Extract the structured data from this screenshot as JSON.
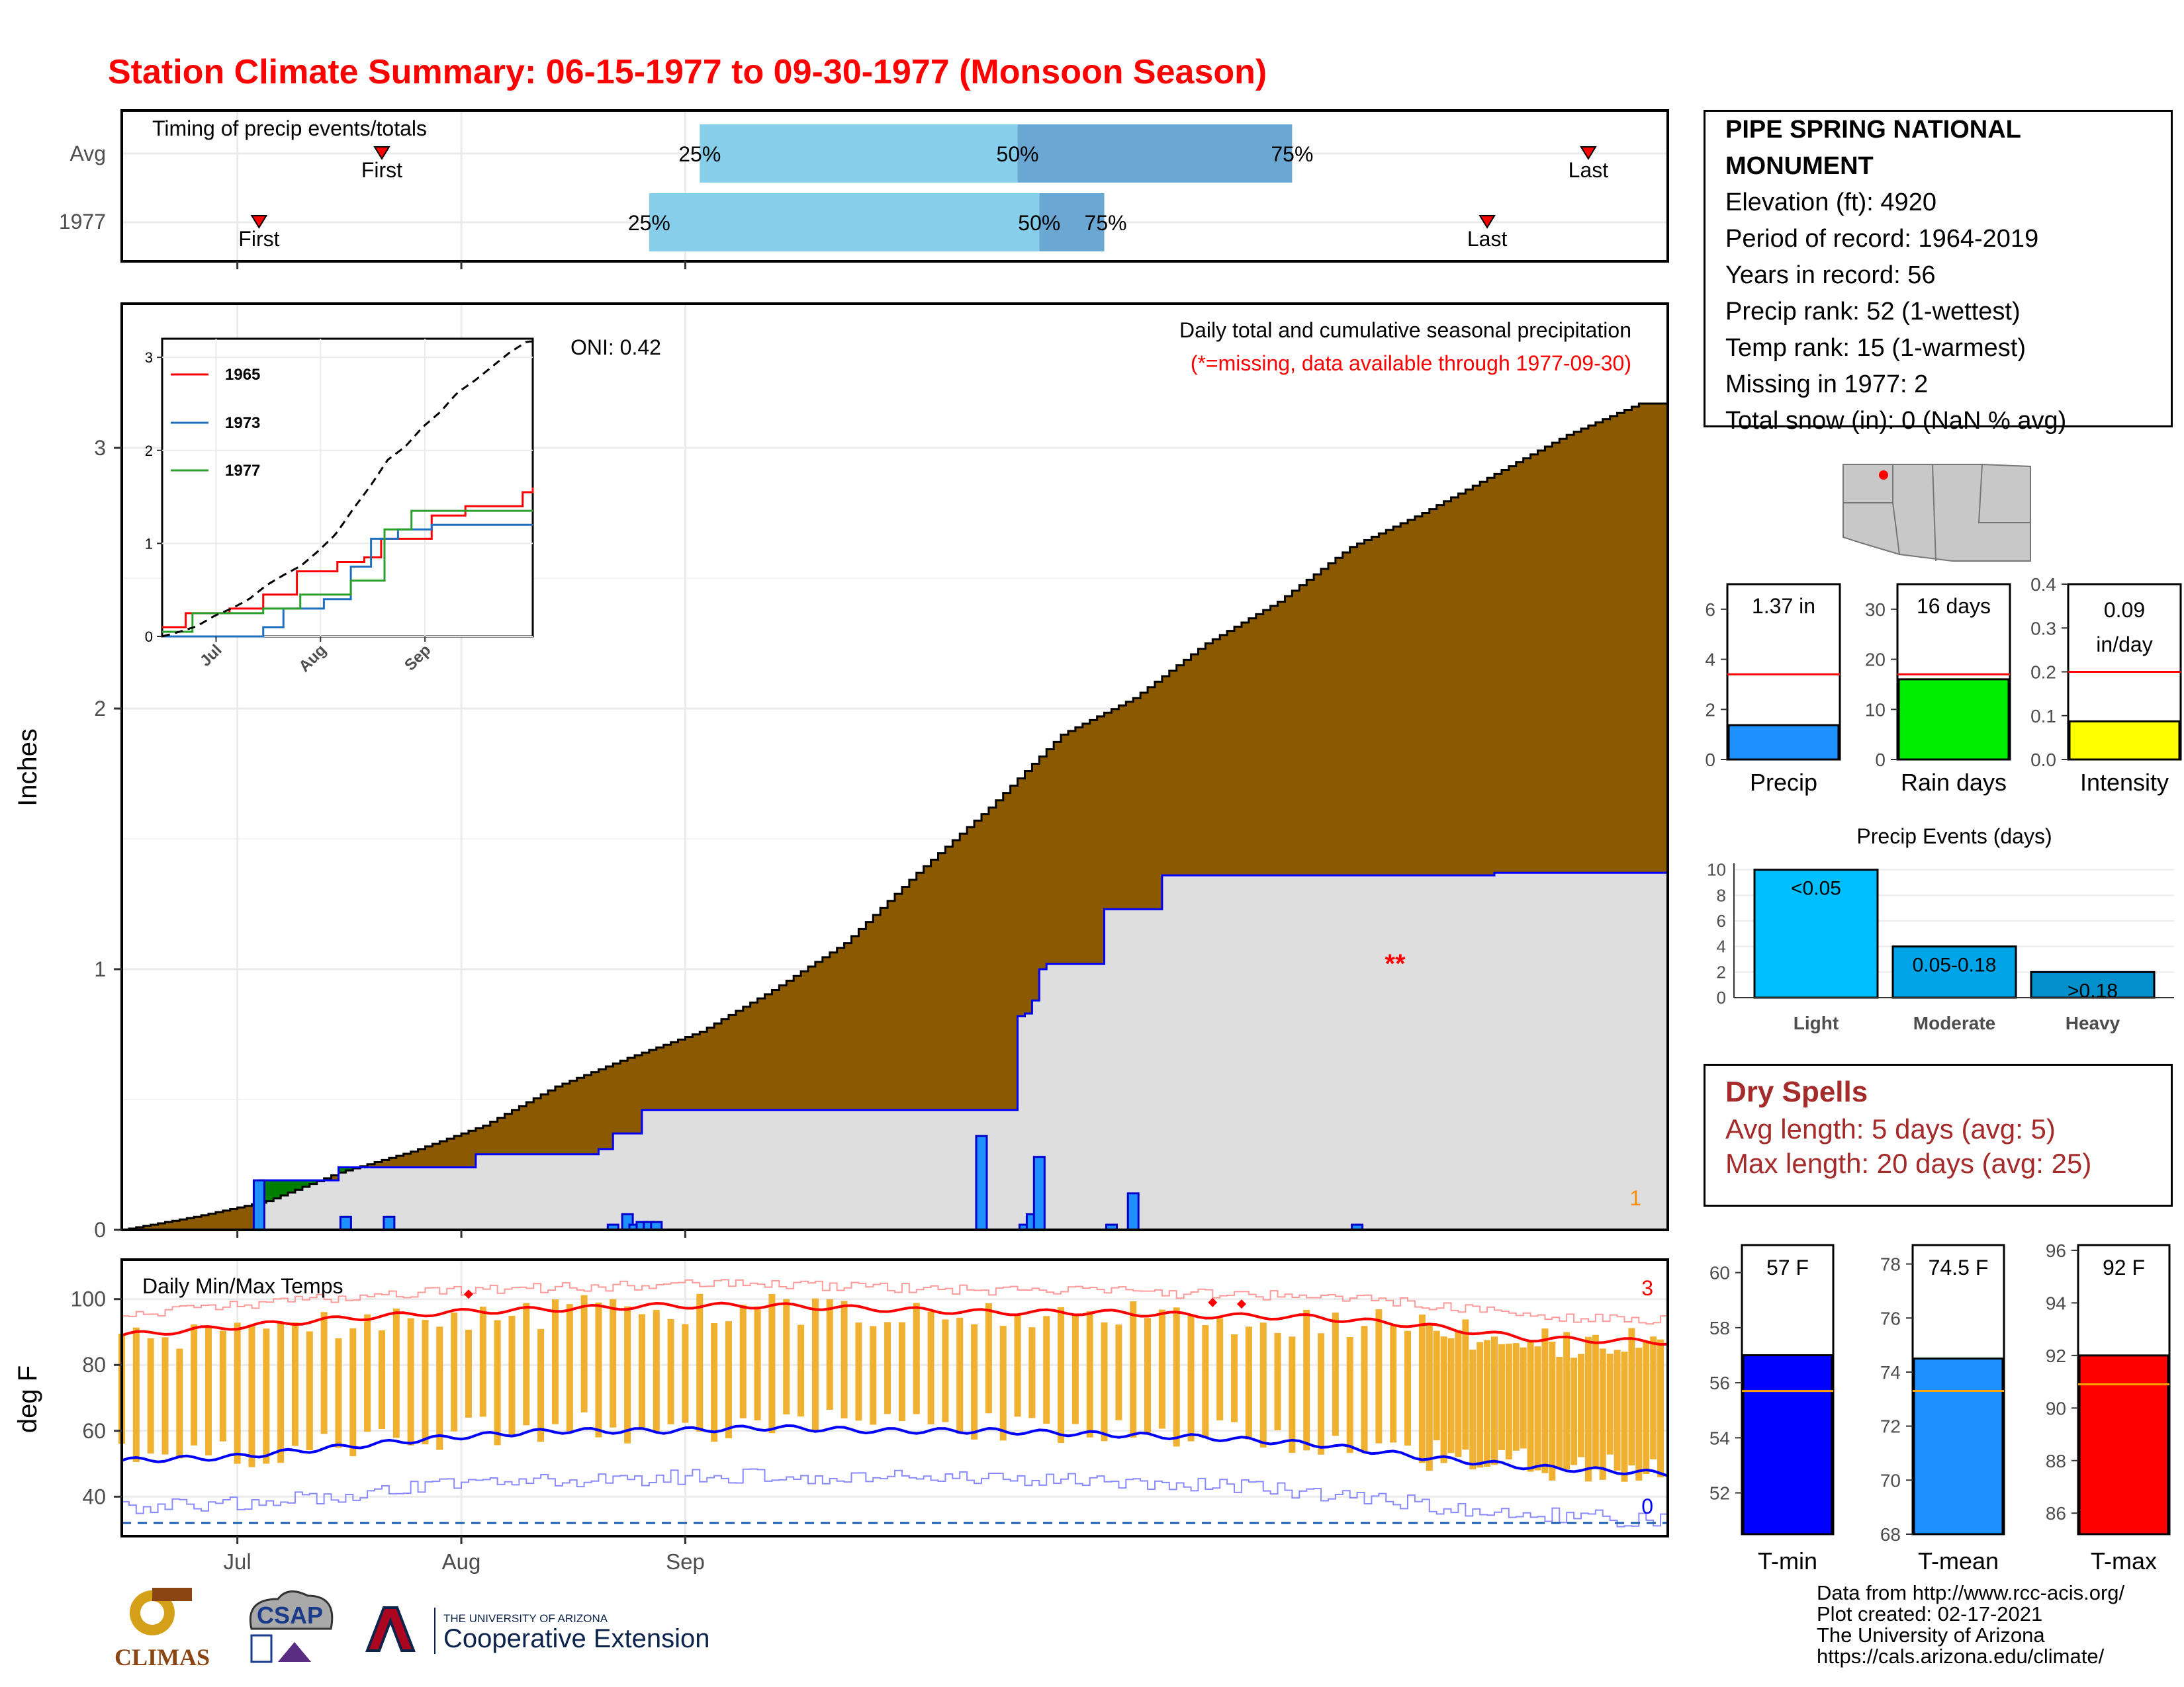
{
  "title": "Station Climate Summary: 06-15-1977 to 09-30-1977 (Monsoon Season)",
  "timing": {
    "label": "Timing of precip events/totals",
    "rows": [
      {
        "name": "Avg",
        "first_day": 36,
        "p25_day": 80,
        "p50_day": 124,
        "p75_day": 162,
        "last_day": 203,
        "first_label": "First",
        "last_label": "Last",
        "p25_label": "25%",
        "p50_label": "50%",
        "p75_label": "75%"
      },
      {
        "name": "1977",
        "first_day": 19,
        "p25_day": 73,
        "p50_day": 127,
        "p75_day": 136,
        "last_day": 189,
        "first_label": "First",
        "last_label": "Last",
        "p25_label": "25%",
        "p50_label": "50%",
        "p75_label": "75%"
      }
    ]
  },
  "precip_panel": {
    "title": "Daily total and cumulative seasonal precipitation",
    "subtitle": "(*=missing, data available through 1977-09-30)",
    "oni": "ONI: 0.42",
    "ylabel": "Inches",
    "yticks": [
      "0",
      "1",
      "2",
      "3"
    ],
    "missing_marker": "**",
    "corner_count": "1"
  },
  "inset": {
    "legend": [
      "1965",
      "1973",
      "1977"
    ],
    "yticks": [
      "0",
      "1",
      "2",
      "3"
    ],
    "xticks": [
      "Jul",
      "Aug",
      "Sep"
    ]
  },
  "temp_panel": {
    "title": "Daily Min/Max Temps",
    "ylabel": "deg F",
    "yticks": [
      "40",
      "60",
      "80",
      "100"
    ],
    "count_top": "3",
    "count_bottom": "0"
  },
  "x_axis": {
    "ticks": [
      "Jul",
      "Aug",
      "Sep"
    ]
  },
  "station": {
    "name": "PIPE SPRING NATIONAL MONUMENT",
    "lines": [
      "Elevation (ft): 4920",
      "Period of record: 1964-2019",
      "Years in record: 56",
      "Precip rank: 52 (1-wettest)",
      "Temp rank: 15 (1-warmest)",
      "Missing in 1977: 2",
      "Total snow (in): 0 (NaN % avg)"
    ]
  },
  "mini_bars": [
    {
      "label": "Precip",
      "value_text": "1.37 in",
      "value": 1.37,
      "avg": 3.4,
      "ymax": 7,
      "yticks": [
        "0",
        "2",
        "4",
        "6"
      ],
      "color": "#1e90ff"
    },
    {
      "label": "Rain days",
      "value_text": "16 days",
      "value": 16,
      "avg": 17,
      "ymax": 35,
      "yticks": [
        "0",
        "10",
        "20",
        "30"
      ],
      "color": "#00ee00"
    },
    {
      "label": "Intensity",
      "value_text_1": "0.09",
      "value_text_2": "in/day",
      "value": 0.087,
      "avg": 0.2,
      "ymax": 0.4,
      "yticks": [
        "0.0",
        "0.1",
        "0.2",
        "0.3",
        "0.4"
      ],
      "color": "#ffff00"
    }
  ],
  "precip_events": {
    "title": "Precip Events (days)",
    "categories": [
      "Light",
      "Moderate",
      "Heavy"
    ],
    "values": [
      10,
      4,
      2
    ],
    "labels": [
      "<0.05",
      "0.05-0.18",
      ">0.18"
    ],
    "yticks": [
      "0",
      "2",
      "4",
      "6",
      "8",
      "10"
    ]
  },
  "dry_spells": {
    "title": "Dry Spells",
    "avg_length": "Avg length: 5 days (avg: 5)",
    "max_length": "Max length: 20 days (avg: 25)"
  },
  "temp_bars": [
    {
      "label": "T-min",
      "value_text": "57 F",
      "value": 57,
      "avg": 55.7,
      "ymin": 50.5,
      "ymax": 61,
      "yticks": [
        "52",
        "54",
        "56",
        "58",
        "60"
      ],
      "color": "#0000ff"
    },
    {
      "label": "T-mean",
      "value_text": "74.5 F",
      "value": 74.5,
      "avg": 73.3,
      "ymin": 68,
      "ymax": 78.7,
      "yticks": [
        "68",
        "70",
        "72",
        "74",
        "76",
        "78"
      ],
      "color": "#1e90ff"
    },
    {
      "label": "T-max",
      "value_text": "92 F",
      "value": 92,
      "avg": 90.9,
      "ymin": 85.2,
      "ymax": 96.2,
      "yticks": [
        "86",
        "88",
        "90",
        "92",
        "94",
        "96"
      ],
      "color": "#ff0000"
    }
  ],
  "credits": [
    "Data from http://www.rcc-acis.org/",
    "Plot created: 02-17-2021",
    "The University of Arizona",
    "https://cals.arizona.edu/climate/"
  ],
  "logos": {
    "climas": "CLIMAS",
    "csap": "CSAP",
    "ua_small": "THE UNIVERSITY OF ARIZONA",
    "ua_big": "Cooperative Extension"
  },
  "chart_data": [
    {
      "type": "area",
      "title": "Daily total and cumulative seasonal precipitation",
      "ylabel": "Inches",
      "ylim": [
        0,
        3.5
      ],
      "x_days": "days since 06-15",
      "cumulative_avg": [
        [
          0,
          0
        ],
        [
          10,
          0.05
        ],
        [
          20,
          0.11
        ],
        [
          30,
          0.22
        ],
        [
          40,
          0.3
        ],
        [
          50,
          0.4
        ],
        [
          60,
          0.55
        ],
        [
          70,
          0.66
        ],
        [
          80,
          0.76
        ],
        [
          90,
          0.92
        ],
        [
          100,
          1.1
        ],
        [
          110,
          1.37
        ],
        [
          120,
          1.62
        ],
        [
          130,
          1.9
        ],
        [
          140,
          2.04
        ],
        [
          150,
          2.25
        ],
        [
          160,
          2.41
        ],
        [
          170,
          2.62
        ],
        [
          180,
          2.75
        ],
        [
          190,
          2.9
        ],
        [
          200,
          3.05
        ],
        [
          210,
          3.17
        ],
        [
          214,
          3.17
        ]
      ],
      "cumulative_1977": [
        [
          0,
          0
        ],
        [
          19,
          0.19
        ],
        [
          30,
          0.24
        ],
        [
          36,
          0.24
        ],
        [
          49,
          0.29
        ],
        [
          66,
          0.31
        ],
        [
          68,
          0.37
        ],
        [
          72,
          0.46
        ],
        [
          117,
          0.46
        ],
        [
          124,
          0.82
        ],
        [
          125,
          0.83
        ],
        [
          126,
          0.88
        ],
        [
          127,
          1.0
        ],
        [
          128,
          1.02
        ],
        [
          136,
          1.23
        ],
        [
          139,
          1.23
        ],
        [
          144,
          1.36
        ],
        [
          190,
          1.37
        ],
        [
          214,
          1.37
        ]
      ],
      "daily_1977": [
        [
          19,
          0.19
        ],
        [
          31,
          0.05
        ],
        [
          37,
          0.05
        ],
        [
          68,
          0.02
        ],
        [
          70,
          0.06
        ],
        [
          71,
          0.02
        ],
        [
          72,
          0.03
        ],
        [
          73,
          0.03
        ],
        [
          74,
          0.03
        ],
        [
          119,
          0.36
        ],
        [
          125,
          0.02
        ],
        [
          126,
          0.06
        ],
        [
          127,
          0.28
        ],
        [
          137,
          0.02
        ],
        [
          140,
          0.14
        ],
        [
          171,
          0.02
        ]
      ]
    },
    {
      "type": "line",
      "title": "inset cumulative precip",
      "series": [
        {
          "name": "1965",
          "values": [
            [
              0,
              0.1
            ],
            [
              7,
              0.25
            ],
            [
              20,
              0.3
            ],
            [
              30,
              0.45
            ],
            [
              40,
              0.7
            ],
            [
              52,
              0.8
            ],
            [
              60,
              0.85
            ],
            [
              65,
              1.05
            ],
            [
              80,
              1.3
            ],
            [
              90,
              1.4
            ],
            [
              100,
              1.4
            ],
            [
              107,
              1.55
            ],
            [
              110,
              1.6
            ]
          ]
        },
        {
          "name": "1973",
          "values": [
            [
              0,
              0
            ],
            [
              28,
              0.0
            ],
            [
              30,
              0.1
            ],
            [
              36,
              0.3
            ],
            [
              48,
              0.4
            ],
            [
              56,
              0.75
            ],
            [
              62,
              1.05
            ],
            [
              70,
              1.15
            ],
            [
              80,
              1.2
            ],
            [
              110,
              1.2
            ]
          ]
        },
        {
          "name": "1977",
          "values": [
            [
              0,
              0.05
            ],
            [
              9,
              0.25
            ],
            [
              30,
              0.3
            ],
            [
              41,
              0.45
            ],
            [
              56,
              0.6
            ],
            [
              66,
              1.15
            ],
            [
              74,
              1.35
            ],
            [
              85,
              1.35
            ],
            [
              110,
              1.35
            ]
          ]
        }
      ]
    },
    {
      "type": "bar",
      "title": "Daily Min/Max Temps",
      "ylabel": "deg F",
      "ylim": [
        28,
        112
      ],
      "tmax_avg": [
        [
          0,
          89
        ],
        [
          15,
          91.5
        ],
        [
          30,
          94
        ],
        [
          45,
          96
        ],
        [
          60,
          97
        ],
        [
          75,
          98
        ],
        [
          90,
          98
        ],
        [
          105,
          97
        ],
        [
          120,
          96
        ],
        [
          135,
          96
        ],
        [
          150,
          95
        ],
        [
          165,
          94.5
        ],
        [
          180,
          92
        ],
        [
          195,
          88
        ],
        [
          214,
          87
        ]
      ],
      "tmin_avg": [
        [
          0,
          51
        ],
        [
          15,
          52
        ],
        [
          30,
          55
        ],
        [
          45,
          58
        ],
        [
          60,
          60
        ],
        [
          75,
          60
        ],
        [
          90,
          61
        ],
        [
          105,
          60
        ],
        [
          120,
          60
        ],
        [
          135,
          59
        ],
        [
          150,
          58
        ],
        [
          165,
          56
        ],
        [
          180,
          52
        ],
        [
          195,
          49
        ],
        [
          214,
          47
        ]
      ]
    }
  ]
}
